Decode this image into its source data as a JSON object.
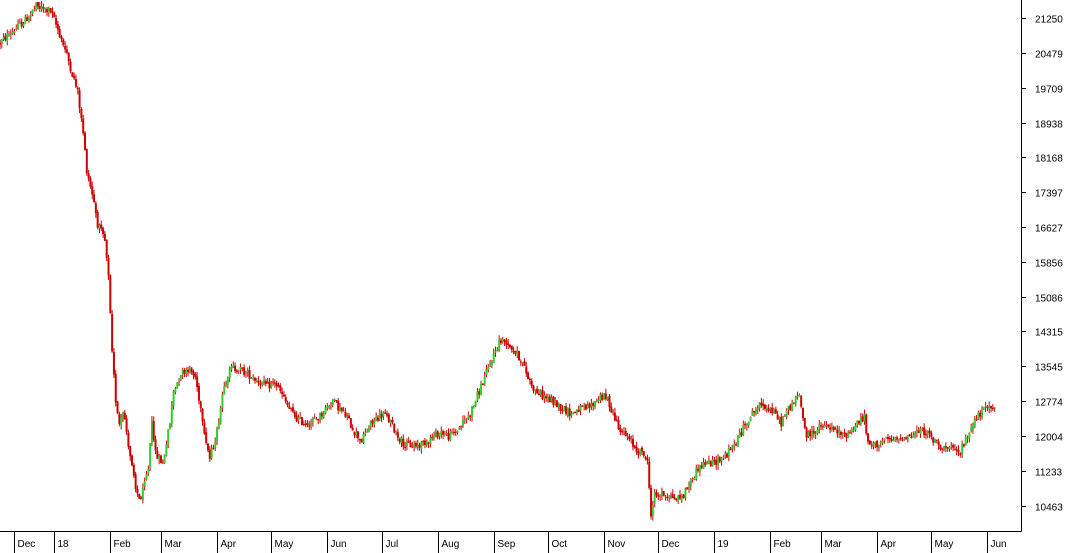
{
  "chart_data": {
    "type": "candlestick",
    "title": "",
    "xlabel": "",
    "ylabel": "",
    "ylim": [
      9900,
      21650
    ],
    "grid": false,
    "legend": "none",
    "colors": {
      "up": "#33cc33",
      "down": "#cc0000",
      "axis": "#000000",
      "background": "#ffffff"
    },
    "y_ticks": [
      21250,
      20479,
      19709,
      18938,
      18168,
      17397,
      16627,
      15856,
      15086,
      14315,
      13545,
      12774,
      12004,
      11233,
      10463
    ],
    "x_ticks": [
      "Dec",
      "18",
      "Feb",
      "Mar",
      "Apr",
      "May",
      "Jun",
      "Jul",
      "Aug",
      "Sep",
      "Oct",
      "Nov",
      "Dec",
      "19",
      "Feb",
      "Mar",
      "Apr",
      "May",
      "Jun"
    ],
    "x_tick_days": [
      0,
      22,
      53,
      81,
      112,
      142,
      173,
      203,
      234,
      265,
      295,
      326,
      356,
      387,
      418,
      446,
      477,
      507,
      538
    ],
    "x_range_days": [
      -8,
      556
    ],
    "price_path": [
      [
        -8,
        20700
      ],
      [
        0,
        21000
      ],
      [
        6,
        21200
      ],
      [
        12,
        21500
      ],
      [
        20,
        21400
      ],
      [
        26,
        20800
      ],
      [
        30,
        20300
      ],
      [
        35,
        19600
      ],
      [
        38,
        18700
      ],
      [
        40,
        17900
      ],
      [
        44,
        17200
      ],
      [
        46,
        16700
      ],
      [
        50,
        16300
      ],
      [
        52,
        15500
      ],
      [
        54,
        13800
      ],
      [
        56,
        12800
      ],
      [
        58,
        12300
      ],
      [
        60,
        12600
      ],
      [
        62,
        12100
      ],
      [
        65,
        11300
      ],
      [
        67,
        10800
      ],
      [
        70,
        10600
      ],
      [
        74,
        11300
      ],
      [
        76,
        12400
      ],
      [
        78,
        11600
      ],
      [
        82,
        11400
      ],
      [
        86,
        12300
      ],
      [
        88,
        13000
      ],
      [
        92,
        13400
      ],
      [
        96,
        13500
      ],
      [
        100,
        13300
      ],
      [
        104,
        12400
      ],
      [
        106,
        11900
      ],
      [
        108,
        11500
      ],
      [
        112,
        12100
      ],
      [
        116,
        13200
      ],
      [
        120,
        13500
      ],
      [
        124,
        13500
      ],
      [
        128,
        13400
      ],
      [
        132,
        13300
      ],
      [
        136,
        13200
      ],
      [
        140,
        13100
      ],
      [
        144,
        13200
      ],
      [
        148,
        12900
      ],
      [
        152,
        12600
      ],
      [
        156,
        12400
      ],
      [
        160,
        12300
      ],
      [
        164,
        12300
      ],
      [
        168,
        12400
      ],
      [
        172,
        12600
      ],
      [
        176,
        12800
      ],
      [
        180,
        12600
      ],
      [
        184,
        12400
      ],
      [
        188,
        12100
      ],
      [
        192,
        11900
      ],
      [
        196,
        12200
      ],
      [
        200,
        12400
      ],
      [
        204,
        12500
      ],
      [
        208,
        12300
      ],
      [
        212,
        12000
      ],
      [
        216,
        11800
      ],
      [
        220,
        11800
      ],
      [
        224,
        11800
      ],
      [
        228,
        11900
      ],
      [
        232,
        12000
      ],
      [
        236,
        12100
      ],
      [
        240,
        12000
      ],
      [
        244,
        12100
      ],
      [
        248,
        12300
      ],
      [
        252,
        12500
      ],
      [
        256,
        12900
      ],
      [
        260,
        13300
      ],
      [
        264,
        13700
      ],
      [
        268,
        14100
      ],
      [
        272,
        14100
      ],
      [
        276,
        13900
      ],
      [
        280,
        13700
      ],
      [
        284,
        13300
      ],
      [
        288,
        13000
      ],
      [
        292,
        12900
      ],
      [
        296,
        12800
      ],
      [
        300,
        12700
      ],
      [
        304,
        12600
      ],
      [
        308,
        12500
      ],
      [
        312,
        12600
      ],
      [
        316,
        12600
      ],
      [
        320,
        12700
      ],
      [
        324,
        12900
      ],
      [
        328,
        12800
      ],
      [
        332,
        12400
      ],
      [
        336,
        12100
      ],
      [
        340,
        11900
      ],
      [
        344,
        11700
      ],
      [
        348,
        11600
      ],
      [
        350,
        11400
      ],
      [
        352,
        10300
      ],
      [
        354,
        10700
      ],
      [
        358,
        10700
      ],
      [
        362,
        10700
      ],
      [
        366,
        10600
      ],
      [
        370,
        10700
      ],
      [
        374,
        11000
      ],
      [
        378,
        11300
      ],
      [
        382,
        11400
      ],
      [
        386,
        11400
      ],
      [
        390,
        11500
      ],
      [
        394,
        11600
      ],
      [
        398,
        11800
      ],
      [
        402,
        12100
      ],
      [
        406,
        12400
      ],
      [
        410,
        12600
      ],
      [
        414,
        12700
      ],
      [
        418,
        12600
      ],
      [
        422,
        12400
      ],
      [
        424,
        12300
      ],
      [
        428,
        12600
      ],
      [
        432,
        12800
      ],
      [
        434,
        12900
      ],
      [
        436,
        12400
      ],
      [
        438,
        12000
      ],
      [
        442,
        12100
      ],
      [
        446,
        12200
      ],
      [
        450,
        12200
      ],
      [
        454,
        12100
      ],
      [
        458,
        12000
      ],
      [
        462,
        12100
      ],
      [
        466,
        12300
      ],
      [
        470,
        12400
      ],
      [
        472,
        11800
      ],
      [
        476,
        11800
      ],
      [
        480,
        11900
      ],
      [
        484,
        11900
      ],
      [
        488,
        11900
      ],
      [
        492,
        12000
      ],
      [
        496,
        12000
      ],
      [
        500,
        12100
      ],
      [
        504,
        12100
      ],
      [
        508,
        11900
      ],
      [
        512,
        11800
      ],
      [
        516,
        11700
      ],
      [
        520,
        11700
      ],
      [
        522,
        11600
      ],
      [
        526,
        11900
      ],
      [
        530,
        12300
      ],
      [
        534,
        12500
      ],
      [
        538,
        12600
      ],
      [
        542,
        12700
      ]
    ]
  }
}
